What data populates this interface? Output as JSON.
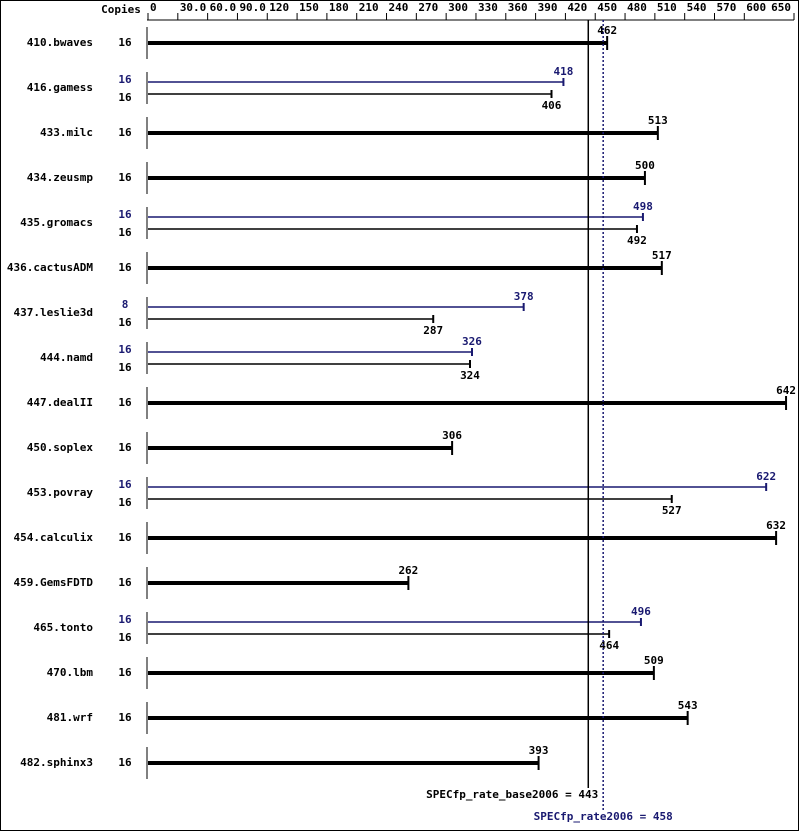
{
  "chart_data": {
    "type": "bar",
    "orientation": "horizontal",
    "copies_header": "Copies",
    "base_color": "#000000",
    "peak_color": "#191970",
    "xlim": [
      0,
      650
    ],
    "xticks": [
      0,
      {
        "value": 30,
        "label": "30.0"
      },
      {
        "value": 60,
        "label": "60.0"
      },
      {
        "value": 90,
        "label": "90.0"
      },
      120,
      150,
      180,
      210,
      240,
      270,
      300,
      330,
      360,
      390,
      420,
      450,
      480,
      510,
      540,
      570,
      600,
      650
    ],
    "benchmarks": [
      {
        "name": "410.bwaves",
        "base_copies": 16,
        "base": 462
      },
      {
        "name": "416.gamess",
        "peak_copies": 16,
        "peak": 418,
        "base_copies": 16,
        "base": 406
      },
      {
        "name": "433.milc",
        "base_copies": 16,
        "base": 513
      },
      {
        "name": "434.zeusmp",
        "base_copies": 16,
        "base": 500
      },
      {
        "name": "435.gromacs",
        "peak_copies": 16,
        "peak": 498,
        "base_copies": 16,
        "base": 492
      },
      {
        "name": "436.cactusADM",
        "base_copies": 16,
        "base": 517
      },
      {
        "name": "437.leslie3d",
        "peak_copies": 8,
        "peak": 378,
        "base_copies": 16,
        "base": 287
      },
      {
        "name": "444.namd",
        "peak_copies": 16,
        "peak": 326,
        "base_copies": 16,
        "base": 324
      },
      {
        "name": "447.dealII",
        "base_copies": 16,
        "base": 642
      },
      {
        "name": "450.soplex",
        "base_copies": 16,
        "base": 306
      },
      {
        "name": "453.povray",
        "peak_copies": 16,
        "peak": 622,
        "base_copies": 16,
        "base": 527
      },
      {
        "name": "454.calculix",
        "base_copies": 16,
        "base": 632
      },
      {
        "name": "459.GemsFDTD",
        "base_copies": 16,
        "base": 262
      },
      {
        "name": "465.tonto",
        "peak_copies": 16,
        "peak": 496,
        "base_copies": 16,
        "base": 464
      },
      {
        "name": "470.lbm",
        "base_copies": 16,
        "base": 509
      },
      {
        "name": "481.wrf",
        "base_copies": 16,
        "base": 543
      },
      {
        "name": "482.sphinx3",
        "base_copies": 16,
        "base": 393
      }
    ],
    "base_summary": {
      "label": "SPECfp_rate_base2006 = 443",
      "value": 443
    },
    "peak_summary": {
      "label": "SPECfp_rate2006 = 458",
      "value": 458
    }
  }
}
